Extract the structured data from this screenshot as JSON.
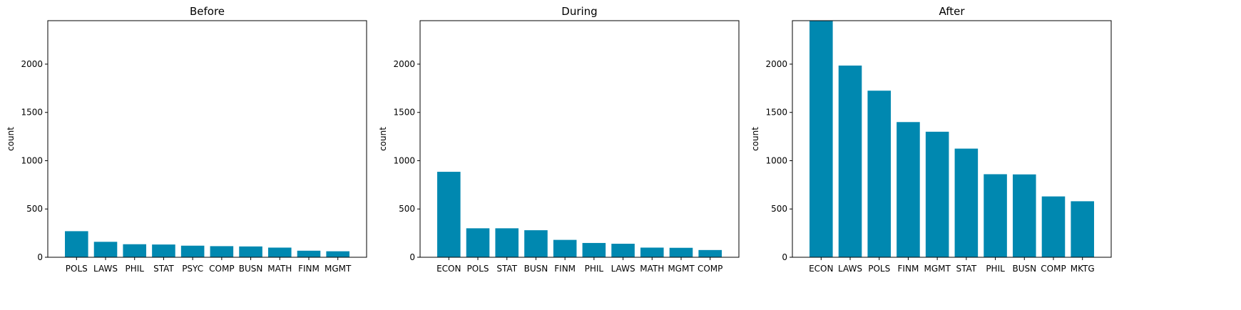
{
  "chart_data": [
    {
      "type": "bar",
      "title": "Before",
      "ylabel": "count",
      "xlabel": "",
      "ylim": [
        0,
        2450
      ],
      "yticks": [
        0,
        500,
        1000,
        1500,
        2000
      ],
      "categories": [
        "POLS",
        "LAWS",
        "PHIL",
        "STAT",
        "PSYC",
        "COMP",
        "BUSN",
        "MATH",
        "FINM",
        "MGMT"
      ],
      "values": [
        270,
        160,
        135,
        132,
        120,
        115,
        112,
        100,
        68,
        62
      ],
      "color": "#0088b0",
      "grid": false
    },
    {
      "type": "bar",
      "title": "During",
      "ylabel": "count",
      "xlabel": "",
      "ylim": [
        0,
        2450
      ],
      "yticks": [
        0,
        500,
        1000,
        1500,
        2000
      ],
      "categories": [
        "ECON",
        "POLS",
        "STAT",
        "BUSN",
        "FINM",
        "PHIL",
        "LAWS",
        "MATH",
        "MGMT",
        "COMP"
      ],
      "values": [
        885,
        300,
        300,
        280,
        180,
        148,
        140,
        100,
        98,
        75
      ],
      "color": "#0088b0",
      "grid": false
    },
    {
      "type": "bar",
      "title": "After",
      "ylabel": "count",
      "xlabel": "",
      "ylim": [
        0,
        2450
      ],
      "yticks": [
        0,
        500,
        1000,
        1500,
        2000
      ],
      "categories": [
        "ECON",
        "LAWS",
        "POLS",
        "FINM",
        "MGMT",
        "STAT",
        "PHIL",
        "BUSN",
        "COMP",
        "MKTG"
      ],
      "values": [
        2450,
        1985,
        1725,
        1400,
        1300,
        1125,
        860,
        858,
        630,
        580
      ],
      "color": "#0088b0",
      "grid": false
    }
  ]
}
